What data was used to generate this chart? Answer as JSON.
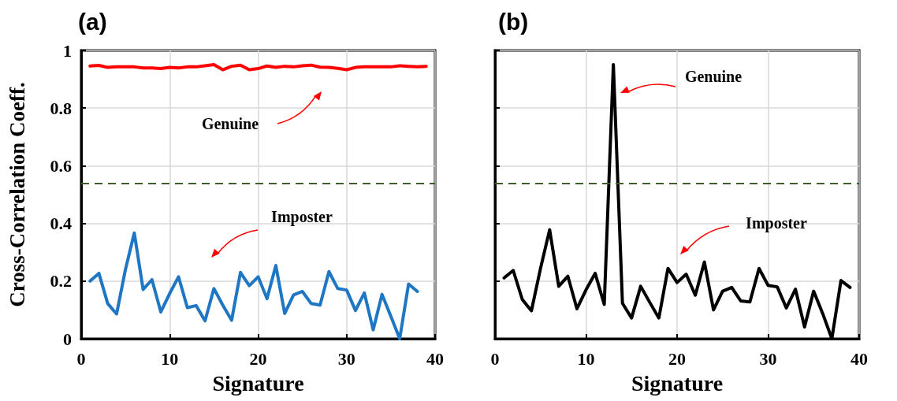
{
  "chart_data": [
    {
      "type": "line",
      "title": "(a)",
      "xlabel": "Signature",
      "ylabel": "Cross-Correlation Coeff.",
      "xlim": [
        0,
        40
      ],
      "xticks": [
        0,
        10,
        20,
        30,
        40
      ],
      "ylim": [
        0,
        1
      ],
      "yticks": [
        0,
        0.2,
        0.4,
        0.6,
        0.8,
        1
      ],
      "grid": true,
      "marker": "none",
      "line_style": "solid",
      "series": [
        {
          "color": "#ff0000",
          "x": [
            1,
            2,
            3,
            4,
            5,
            6,
            7,
            8,
            9,
            10,
            11,
            12,
            13,
            14,
            15,
            16,
            17,
            18,
            19,
            20,
            21,
            22,
            23,
            24,
            25,
            26,
            27,
            28,
            29,
            30,
            31,
            32,
            33,
            34,
            35,
            36,
            37,
            38,
            39
          ],
          "values": [
            0.946,
            0.948,
            0.941,
            0.943,
            0.943,
            0.943,
            0.939,
            0.939,
            0.937,
            0.941,
            0.939,
            0.943,
            0.943,
            0.947,
            0.951,
            0.933,
            0.945,
            0.949,
            0.933,
            0.937,
            0.946,
            0.941,
            0.945,
            0.943,
            0.947,
            0.949,
            0.942,
            0.941,
            0.938,
            0.933,
            0.941,
            0.943,
            0.943,
            0.943,
            0.943,
            0.947,
            0.945,
            0.943,
            0.945
          ]
        },
        {
          "color": "#1f77c4",
          "x": [
            1,
            2,
            3,
            4,
            5,
            6,
            7,
            8,
            9,
            10,
            11,
            12,
            13,
            14,
            15,
            16,
            17,
            18,
            19,
            20,
            21,
            22,
            23,
            24,
            25,
            26,
            27,
            28,
            29,
            30,
            31,
            32,
            33,
            34,
            35,
            36,
            37,
            38
          ],
          "values": [
            0.2,
            0.227,
            0.122,
            0.086,
            0.24,
            0.367,
            0.171,
            0.205,
            0.093,
            0.157,
            0.215,
            0.108,
            0.115,
            0.062,
            0.174,
            0.117,
            0.064,
            0.23,
            0.184,
            0.215,
            0.139,
            0.254,
            0.088,
            0.152,
            0.164,
            0.122,
            0.117,
            0.233,
            0.174,
            0.169,
            0.098,
            0.159,
            0.031,
            0.154,
            0.078,
            0,
            0.19,
            0.164
          ]
        }
      ],
      "ref_lines": [
        {
          "axis": "y",
          "value": 0.54,
          "color": "#3d5e2a",
          "line_style": "dashed"
        }
      ],
      "annotations": [
        "Genuine",
        "Imposter"
      ]
    },
    {
      "type": "line",
      "title": "(b)",
      "xlabel": "Signature",
      "xlim": [
        0,
        40
      ],
      "xticks": [
        0,
        10,
        20,
        30,
        40
      ],
      "ylim": [
        0,
        1
      ],
      "yticks": [
        0,
        0.2,
        0.4,
        0.6,
        0.8,
        1
      ],
      "grid": true,
      "marker": "none",
      "line_style": "solid",
      "tick_labels": "x",
      "x": [
        1,
        2,
        3,
        4,
        5,
        6,
        7,
        8,
        9,
        10,
        11,
        12,
        13,
        14,
        15,
        16,
        17,
        18,
        19,
        20,
        21,
        22,
        23,
        24,
        25,
        26,
        27,
        28,
        29,
        30,
        31,
        32,
        33,
        34,
        35,
        36,
        37,
        38,
        39
      ],
      "series": [
        {
          "color": "#000000",
          "values": [
            0.211,
            0.237,
            0.136,
            0.097,
            0.244,
            0.378,
            0.182,
            0.217,
            0.104,
            0.17,
            0.227,
            0.119,
            0.951,
            0.123,
            0.072,
            0.182,
            0.126,
            0.072,
            0.244,
            0.195,
            0.224,
            0.151,
            0.266,
            0.1,
            0.165,
            0.178,
            0.131,
            0.128,
            0.244,
            0.185,
            0.18,
            0.107,
            0.172,
            0.041,
            0.165,
            0.087,
            0,
            0.202,
            0.178
          ]
        }
      ],
      "ref_lines": [
        {
          "axis": "y",
          "value": 0.54,
          "color": "#3d5e2a",
          "line_style": "dashed"
        }
      ],
      "annotations": [
        "Genuine",
        "Imposter"
      ]
    }
  ]
}
